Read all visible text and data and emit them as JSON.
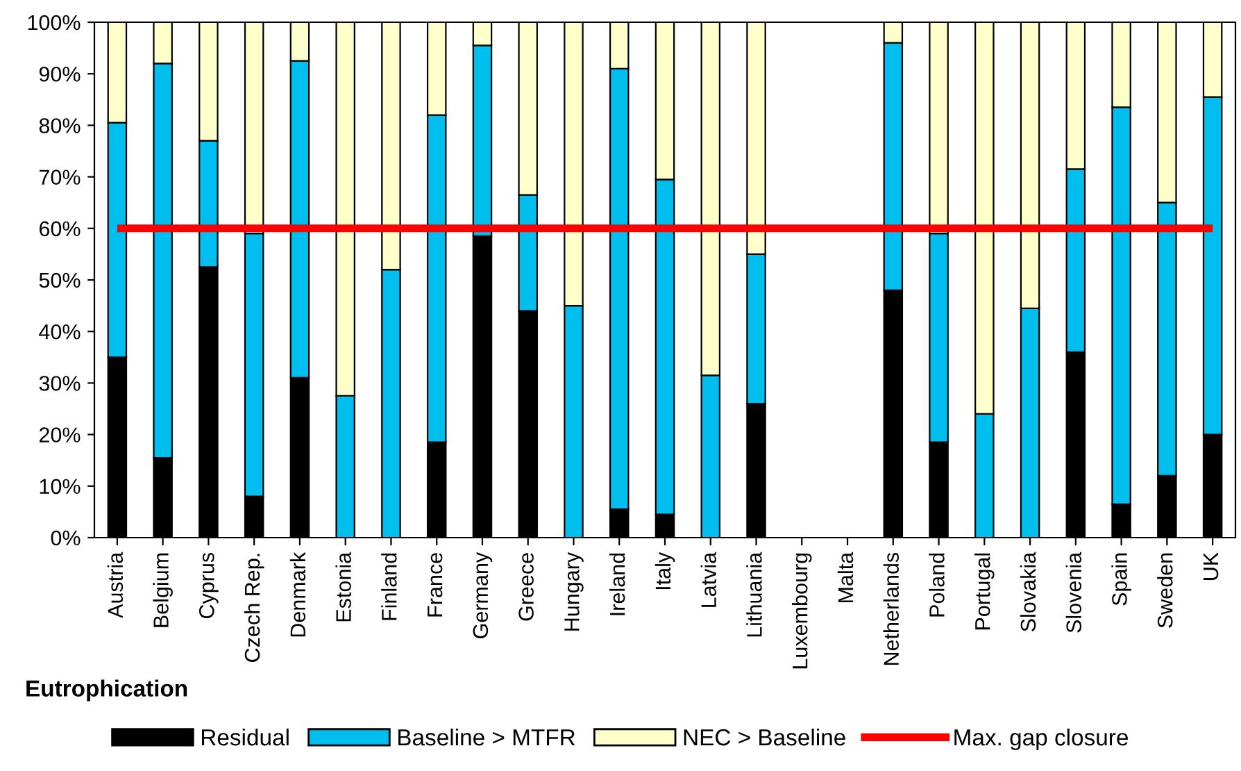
{
  "chart_data": {
    "type": "bar",
    "stacked": true,
    "title": "Eutrophication",
    "legend": "bottom",
    "grid": false,
    "categories": [
      "Austria",
      "Belgium",
      "Cyprus",
      "Czech Rep.",
      "Denmark",
      "Estonia",
      "Finland",
      "France",
      "Germany",
      "Greece",
      "Hungary",
      "Ireland",
      "Italy",
      "Latvia",
      "Lithuania",
      "Luxembourg",
      "Malta",
      "Netherlands",
      "Poland",
      "Portugal",
      "Slovakia",
      "Slovenia",
      "Spain",
      "Sweden",
      "UK"
    ],
    "series": [
      {
        "name": "Residual",
        "color": "#000000",
        "values": [
          35,
          15.5,
          52.5,
          8,
          31,
          0,
          0,
          18.5,
          58.5,
          44,
          0,
          5.5,
          4.5,
          0,
          26,
          null,
          null,
          48,
          18.5,
          0,
          0,
          36,
          6.5,
          12,
          20
        ]
      },
      {
        "name": "Baseline > MTFR",
        "color": "#00bfef",
        "values": [
          45.5,
          76.5,
          24.5,
          51,
          61.5,
          27.5,
          52,
          63.5,
          37,
          22.5,
          45,
          85.5,
          65,
          31.5,
          29,
          null,
          null,
          48,
          40.5,
          24,
          44.5,
          35.5,
          77,
          53,
          65.5
        ]
      },
      {
        "name": "NEC > Baseline",
        "color": "#ffffcc",
        "values": [
          19.5,
          8,
          23,
          41,
          7.5,
          72.5,
          48,
          18,
          4.5,
          33.5,
          55,
          9,
          30.5,
          68.5,
          45,
          null,
          null,
          4,
          41,
          76,
          55.5,
          28.5,
          16.5,
          35,
          14.5
        ]
      },
      {
        "name": "Max. gap closure",
        "type": "line",
        "color": "#ff0000",
        "values": [
          60,
          60,
          60,
          60,
          60,
          60,
          60,
          60,
          60,
          60,
          60,
          60,
          60,
          60,
          60,
          60,
          60,
          60,
          60,
          60,
          60,
          60,
          60,
          60,
          60
        ]
      }
    ],
    "ylim": [
      0,
      100
    ],
    "yticks": [
      {
        "value": 0,
        "label": "0%"
      },
      {
        "value": 10,
        "label": "10%"
      },
      {
        "value": 20,
        "label": "20%"
      },
      {
        "value": 30,
        "label": "30%"
      },
      {
        "value": 40,
        "label": "40%"
      },
      {
        "value": 50,
        "label": "50%"
      },
      {
        "value": 60,
        "label": "60%"
      },
      {
        "value": 70,
        "label": "70%"
      },
      {
        "value": 80,
        "label": "80%"
      },
      {
        "value": 90,
        "label": "90%"
      },
      {
        "value": 100,
        "label": "100%"
      }
    ]
  }
}
